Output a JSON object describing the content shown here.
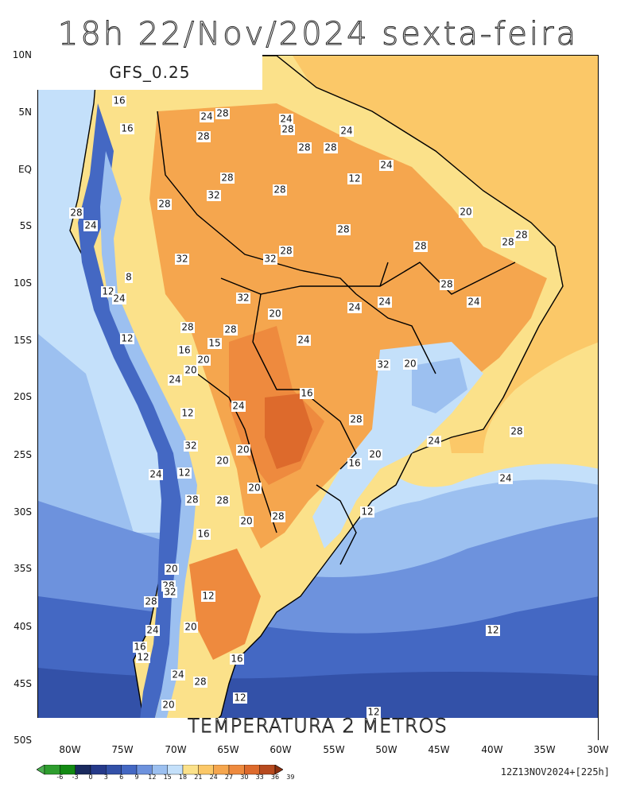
{
  "title": "18h 22/Nov/2024 sexta-feira",
  "model_label": "GFS_0.25",
  "variable_label": "TEMPERATURA 2 METROS",
  "run_info": "12Z13NOV2024+[225h]",
  "lat_labels": [
    "10N",
    "5N",
    "EQ",
    "5S",
    "10S",
    "15S",
    "20S",
    "25S",
    "30S",
    "35S",
    "40S",
    "45S",
    "50S"
  ],
  "lon_labels": [
    "80W",
    "75W",
    "70W",
    "65W",
    "60W",
    "55W",
    "50W",
    "45W",
    "40W",
    "35W",
    "30W"
  ],
  "colorbar": {
    "levels": [
      "-6",
      "-3",
      "0",
      "3",
      "6",
      "9",
      "12",
      "15",
      "18",
      "21",
      "24",
      "27",
      "30",
      "33",
      "36",
      "39"
    ],
    "colors": [
      "#4caf50",
      "#2e9d2e",
      "#138a13",
      "#1a2a5e",
      "#263a8a",
      "#3351a8",
      "#4468c3",
      "#6d92dd",
      "#9cc0f0",
      "#c4e0fa",
      "#fbe18a",
      "#fbc868",
      "#f5a64e",
      "#ee8a3e",
      "#dd6a2c",
      "#b74a1f",
      "#8b3010"
    ]
  },
  "contour_labels": [
    "16",
    "16",
    "24",
    "28",
    "28",
    "24",
    "28",
    "24",
    "28",
    "28",
    "28",
    "32",
    "28",
    "28",
    "24",
    "12",
    "20",
    "28",
    "28",
    "28",
    "28",
    "32",
    "32",
    "28",
    "28",
    "24",
    "8",
    "12",
    "24",
    "28",
    "24",
    "24",
    "24",
    "20",
    "32",
    "28",
    "28",
    "24",
    "15",
    "12",
    "16",
    "20",
    "20",
    "24",
    "20",
    "32",
    "16",
    "24",
    "12",
    "28",
    "28",
    "24",
    "20",
    "32",
    "20",
    "16",
    "20",
    "24",
    "12",
    "20",
    "24",
    "28",
    "28",
    "28",
    "20",
    "12",
    "16",
    "20",
    "28",
    "32",
    "12",
    "28",
    "20",
    "24",
    "16",
    "16",
    "12",
    "24",
    "28",
    "20",
    "12",
    "12",
    "12"
  ]
}
